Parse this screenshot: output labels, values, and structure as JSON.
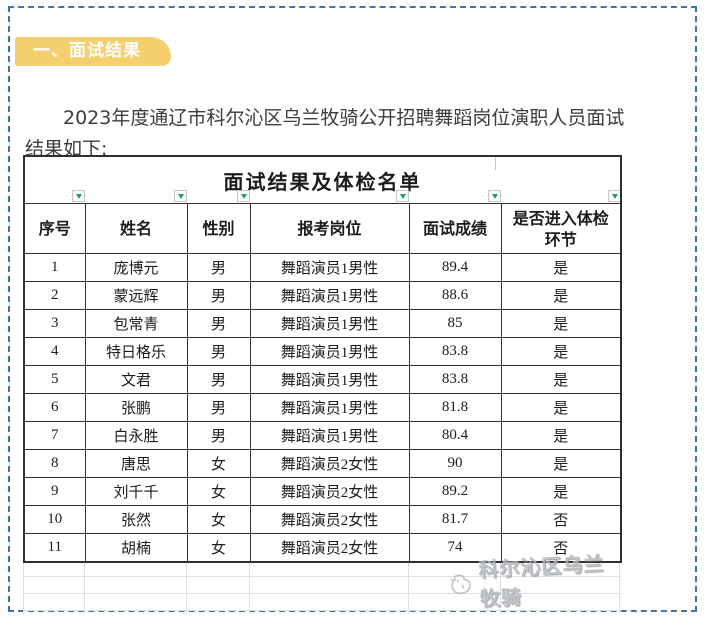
{
  "badge": {
    "label": "一、面试结果"
  },
  "intro": {
    "line1": "2023年度通辽市科尔沁区乌兰牧骑公开招聘舞蹈岗位演职人员面试",
    "line2": "结果如下:"
  },
  "table": {
    "title": "面试结果及体检名单",
    "columns": [
      "序号",
      "姓名",
      "性别",
      "报考岗位",
      "面试成绩",
      "是否进入体检环节"
    ],
    "rows": [
      [
        "1",
        "庞博元",
        "男",
        "舞蹈演员1男性",
        "89.4",
        "是"
      ],
      [
        "2",
        "蒙远辉",
        "男",
        "舞蹈演员1男性",
        "88.6",
        "是"
      ],
      [
        "3",
        "包常青",
        "男",
        "舞蹈演员1男性",
        "85",
        "是"
      ],
      [
        "4",
        "特日格乐",
        "男",
        "舞蹈演员1男性",
        "83.8",
        "是"
      ],
      [
        "5",
        "文君",
        "男",
        "舞蹈演员1男性",
        "83.8",
        "是"
      ],
      [
        "6",
        "张鹏",
        "男",
        "舞蹈演员1男性",
        "81.8",
        "是"
      ],
      [
        "7",
        "白永胜",
        "男",
        "舞蹈演员1男性",
        "80.4",
        "是"
      ],
      [
        "8",
        "唐思",
        "女",
        "舞蹈演员2女性",
        "90",
        "是"
      ],
      [
        "9",
        "刘千千",
        "女",
        "舞蹈演员2女性",
        "89.2",
        "是"
      ],
      [
        "10",
        "张然",
        "女",
        "舞蹈演员2女性",
        "81.7",
        "否"
      ],
      [
        "11",
        "胡楠",
        "女",
        "舞蹈演员2女性",
        "74",
        "否"
      ]
    ],
    "filter_icon": "filter-dropdown-arrow"
  },
  "watermark": {
    "text": "科尔沁区乌兰牧骑",
    "icon": "wulanmuqi-logo-icon"
  },
  "colors": {
    "frame_border": "#3e74a8",
    "badge_bg": "#f5cf6e",
    "badge_text": "#ffffff",
    "filter_arrow": "#21a567",
    "table_border": "#2f2f2f",
    "grid_light": "#dde1e7",
    "watermark_gray": "#b7babe",
    "body_text": "#3c3c3c"
  }
}
